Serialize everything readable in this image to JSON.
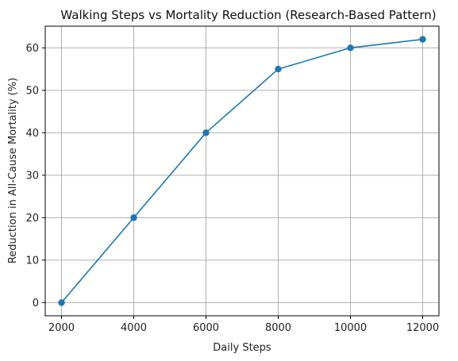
{
  "chart_data": {
    "type": "line",
    "title": "Walking Steps vs Mortality Reduction (Research-Based Pattern)",
    "xlabel": "Daily Steps",
    "ylabel": "Reduction in All-Cause Mortality (%)",
    "x": [
      2000,
      4000,
      6000,
      8000,
      10000,
      12000
    ],
    "series": [
      {
        "values": [
          0,
          20,
          40,
          55,
          60,
          62
        ]
      }
    ],
    "xlim": [
      1550,
      12450
    ],
    "ylim": [
      -3.1,
      65.1
    ],
    "x_ticks": [
      2000,
      4000,
      6000,
      8000,
      10000,
      12000
    ],
    "y_ticks": [
      0,
      10,
      20,
      30,
      40,
      50,
      60
    ],
    "grid": true,
    "marker": "circle",
    "line_color": "#1f77b4",
    "grid_color": "#b0b0b0"
  }
}
